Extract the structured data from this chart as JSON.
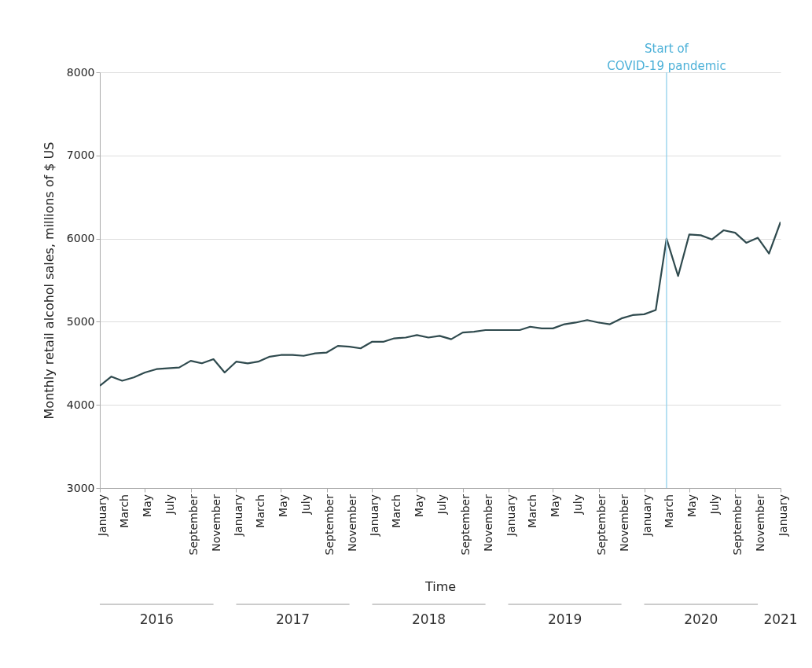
{
  "chart_data": {
    "type": "line",
    "xlabel": "Time",
    "ylabel": "Monthly retail alcohol sales, millions of $ US",
    "x": [
      "2016-01",
      "2016-02",
      "2016-03",
      "2016-04",
      "2016-05",
      "2016-06",
      "2016-07",
      "2016-08",
      "2016-09",
      "2016-10",
      "2016-11",
      "2016-12",
      "2017-01",
      "2017-02",
      "2017-03",
      "2017-04",
      "2017-05",
      "2017-06",
      "2017-07",
      "2017-08",
      "2017-09",
      "2017-10",
      "2017-11",
      "2017-12",
      "2018-01",
      "2018-02",
      "2018-03",
      "2018-04",
      "2018-05",
      "2018-06",
      "2018-07",
      "2018-08",
      "2018-09",
      "2018-10",
      "2018-11",
      "2018-12",
      "2019-01",
      "2019-02",
      "2019-03",
      "2019-04",
      "2019-05",
      "2019-06",
      "2019-07",
      "2019-08",
      "2019-09",
      "2019-10",
      "2019-11",
      "2019-12",
      "2020-01",
      "2020-02",
      "2020-03",
      "2020-04",
      "2020-05",
      "2020-06",
      "2020-07",
      "2020-08",
      "2020-09",
      "2020-10",
      "2020-11",
      "2020-12",
      "2021-01"
    ],
    "series": [
      {
        "color": "#2f4a4e",
        "values": [
          4230,
          4340,
          4290,
          4330,
          4390,
          4430,
          4440,
          4450,
          4530,
          4500,
          4550,
          4390,
          4520,
          4500,
          4520,
          4580,
          4600,
          4600,
          4590,
          4620,
          4630,
          4710,
          4700,
          4680,
          4760,
          4760,
          4800,
          4810,
          4840,
          4810,
          4830,
          4790,
          4870,
          4880,
          4900,
          4900,
          4900,
          4900,
          4940,
          4920,
          4920,
          4970,
          4990,
          5020,
          4990,
          4970,
          5040,
          5080,
          5090,
          5140,
          6000,
          5550,
          6050,
          6040,
          5990,
          6100,
          6070,
          5950,
          6010,
          5820,
          6200
        ]
      }
    ],
    "ylim": [
      3000,
      8000
    ],
    "yticks": [
      3000,
      4000,
      5000,
      6000,
      7000,
      8000
    ],
    "xlim": [
      "2016-01",
      "2021-01"
    ],
    "xticks": [
      {
        "value": "2016-01",
        "label": "January"
      },
      {
        "value": "2016-03",
        "label": "March"
      },
      {
        "value": "2016-05",
        "label": "May"
      },
      {
        "value": "2016-07",
        "label": "July"
      },
      {
        "value": "2016-09",
        "label": "September"
      },
      {
        "value": "2016-11",
        "label": "November"
      },
      {
        "value": "2017-01",
        "label": "January"
      },
      {
        "value": "2017-03",
        "label": "March"
      },
      {
        "value": "2017-05",
        "label": "May"
      },
      {
        "value": "2017-07",
        "label": "July"
      },
      {
        "value": "2017-09",
        "label": "September"
      },
      {
        "value": "2017-11",
        "label": "November"
      },
      {
        "value": "2018-01",
        "label": "January"
      },
      {
        "value": "2018-03",
        "label": "March"
      },
      {
        "value": "2018-05",
        "label": "May"
      },
      {
        "value": "2018-07",
        "label": "July"
      },
      {
        "value": "2018-09",
        "label": "September"
      },
      {
        "value": "2018-11",
        "label": "November"
      },
      {
        "value": "2019-01",
        "label": "January"
      },
      {
        "value": "2019-03",
        "label": "March"
      },
      {
        "value": "2019-05",
        "label": "May"
      },
      {
        "value": "2019-07",
        "label": "July"
      },
      {
        "value": "2019-09",
        "label": "September"
      },
      {
        "value": "2019-11",
        "label": "November"
      },
      {
        "value": "2020-01",
        "label": "January"
      },
      {
        "value": "2020-03",
        "label": "March"
      },
      {
        "value": "2020-05",
        "label": "May"
      },
      {
        "value": "2020-07",
        "label": "July"
      },
      {
        "value": "2020-09",
        "label": "September"
      },
      {
        "value": "2020-11",
        "label": "November"
      },
      {
        "value": "2021-01",
        "label": "January"
      }
    ],
    "grid": "y",
    "ref_lines": [
      {
        "axis": "x",
        "value": "2020-03",
        "label": "Start of COVID-19 pandemic",
        "color": "#9fd6ee"
      }
    ],
    "annotations": [
      "2016",
      "2017",
      "2018",
      "2019",
      "2020",
      "2021"
    ]
  }
}
